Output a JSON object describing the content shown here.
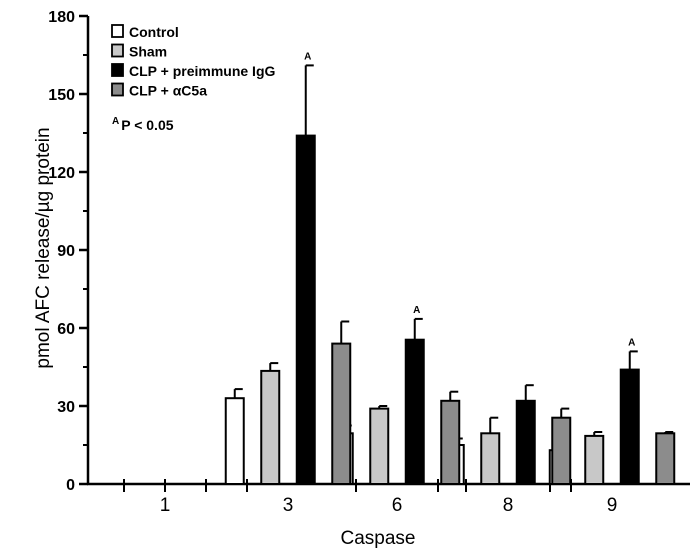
{
  "chart_data": {
    "type": "bar",
    "title": "",
    "xlabel": "Caspase",
    "ylabel": "pmol AFC release/µg protein",
    "ylim": [
      0,
      180
    ],
    "yticks": [
      0,
      30,
      60,
      90,
      120,
      150,
      180
    ],
    "categories": [
      "1",
      "3",
      "6",
      "8",
      "9"
    ],
    "series": [
      {
        "name": "Control",
        "color": "#ffffff",
        "values": [
          0,
          33,
          19.5,
          15,
          13
        ],
        "errors": [
          0,
          3.5,
          3,
          2.5,
          2.5
        ]
      },
      {
        "name": "Sham",
        "color": "#c8c8c8",
        "values": [
          0,
          43.5,
          29,
          19.5,
          18.5
        ],
        "errors": [
          0,
          3,
          1,
          6,
          1.5
        ]
      },
      {
        "name": "CLP + preimmune IgG",
        "color": "#000000",
        "values": [
          0,
          134,
          55.5,
          32,
          44
        ],
        "errors": [
          0,
          27,
          8,
          6,
          7
        ]
      },
      {
        "name": "CLP + αC5a",
        "color": "#8c8c8c",
        "values": [
          0,
          54,
          32,
          25.5,
          19.5
        ],
        "errors": [
          0,
          8.5,
          3.5,
          3.5,
          0.5
        ]
      }
    ],
    "significance": [
      {
        "category": "3",
        "series": "CLP + preimmune IgG",
        "label": "A"
      },
      {
        "category": "6",
        "series": "CLP + preimmune IgG",
        "label": "A"
      },
      {
        "category": "9",
        "series": "CLP + preimmune IgG",
        "label": "A"
      }
    ],
    "legend_position": "top-left",
    "annotation": {
      "sup": "A",
      "text": "P < 0.05"
    }
  }
}
